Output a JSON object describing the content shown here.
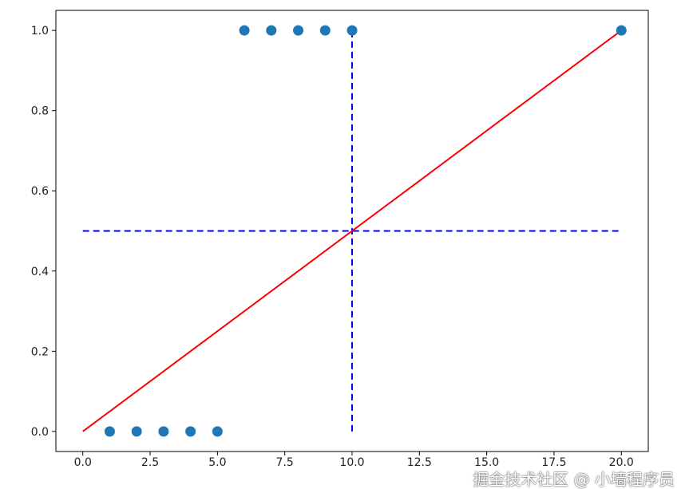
{
  "chart_data": {
    "type": "scatter",
    "title": "",
    "xlabel": "",
    "ylabel": "",
    "xlim": [
      -1,
      21
    ],
    "ylim": [
      -0.05,
      1.05
    ],
    "grid": false,
    "x_ticks": [
      "0.0",
      "2.5",
      "5.0",
      "7.5",
      "10.0",
      "12.5",
      "15.0",
      "17.5",
      "20.0"
    ],
    "y_ticks": [
      "0.0",
      "0.2",
      "0.4",
      "0.6",
      "0.8",
      "1.0"
    ],
    "scatter": {
      "color": "#1f77b4",
      "x": [
        1,
        2,
        3,
        4,
        5,
        6,
        7,
        8,
        9,
        10,
        20
      ],
      "y": [
        0,
        0,
        0,
        0,
        0,
        1,
        1,
        1,
        1,
        1,
        1
      ]
    },
    "line": {
      "color": "#ff0000",
      "x": [
        0,
        20
      ],
      "y": [
        0,
        1
      ]
    },
    "hline": {
      "color": "#0000ff",
      "style": "dashed",
      "y": 0.5,
      "x": [
        0,
        20
      ]
    },
    "vline": {
      "color": "#0000ff",
      "style": "dashed",
      "x": 10,
      "y": [
        0,
        1
      ]
    }
  },
  "watermark": "掘金技术社区 @ 小墙程序员"
}
